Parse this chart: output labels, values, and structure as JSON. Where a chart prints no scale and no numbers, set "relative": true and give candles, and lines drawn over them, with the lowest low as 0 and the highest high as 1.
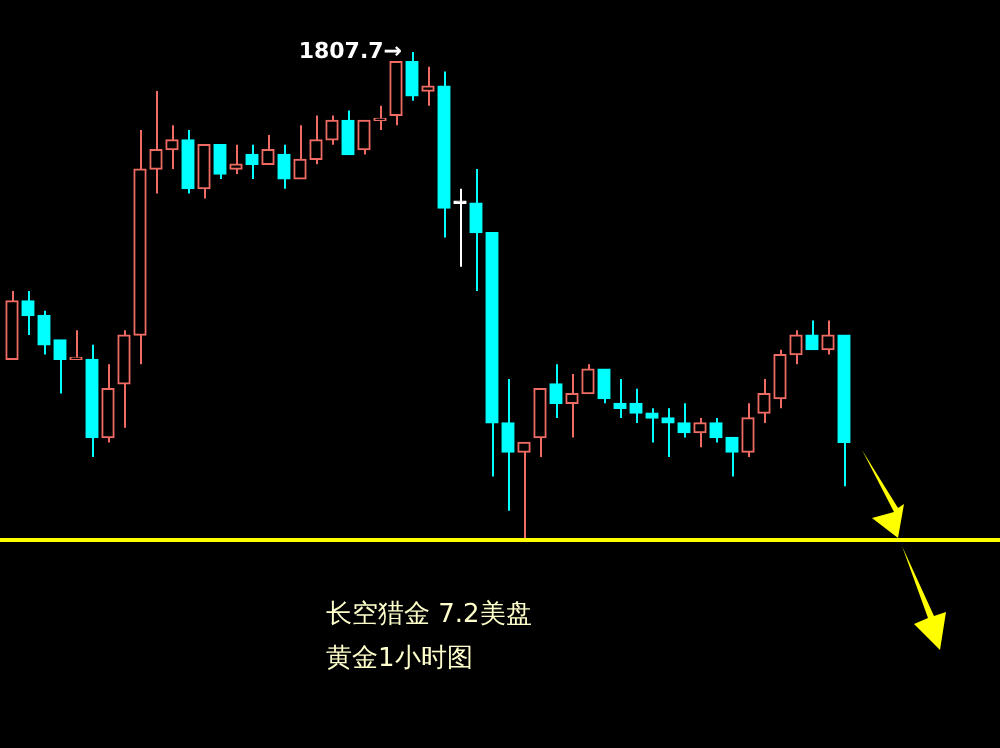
{
  "chart_data": {
    "type": "candlestick",
    "relative": true,
    "categories": [
      null,
      null,
      null,
      null,
      null,
      null,
      null,
      null,
      null,
      null,
      null,
      null,
      null,
      null,
      null,
      null,
      null,
      null,
      null,
      null,
      null,
      null,
      null,
      null,
      null,
      null,
      null,
      null,
      null,
      null,
      null,
      null,
      null,
      null,
      null,
      null,
      null,
      null,
      null,
      null,
      null,
      null,
      null,
      null,
      null,
      null,
      null,
      null,
      null,
      null,
      null,
      null,
      null
    ],
    "ohlc": [
      [
        0.37,
        0.51,
        0.37,
        0.49
      ],
      [
        0.49,
        0.51,
        0.42,
        0.46
      ],
      [
        0.46,
        0.47,
        0.38,
        0.4
      ],
      [
        0.41,
        0.41,
        0.3,
        0.37
      ],
      [
        0.37,
        0.43,
        0.37,
        0.37
      ],
      [
        0.37,
        0.4,
        0.17,
        0.21
      ],
      [
        0.21,
        0.36,
        0.2,
        0.31
      ],
      [
        0.32,
        0.43,
        0.23,
        0.42
      ],
      [
        0.42,
        0.84,
        0.36,
        0.76
      ],
      [
        0.76,
        0.92,
        0.71,
        0.8
      ],
      [
        0.8,
        0.85,
        0.76,
        0.82
      ],
      [
        0.82,
        0.84,
        0.71,
        0.72
      ],
      [
        0.72,
        0.81,
        0.7,
        0.81
      ],
      [
        0.81,
        0.81,
        0.74,
        0.75
      ],
      [
        0.76,
        0.81,
        0.75,
        0.77
      ],
      [
        0.79,
        0.81,
        0.74,
        0.77
      ],
      [
        0.77,
        0.83,
        0.77,
        0.8
      ],
      [
        0.79,
        0.81,
        0.72,
        0.74
      ],
      [
        0.74,
        0.85,
        0.74,
        0.78
      ],
      [
        0.78,
        0.87,
        0.77,
        0.82
      ],
      [
        0.82,
        0.87,
        0.81,
        0.86
      ],
      [
        0.86,
        0.88,
        0.79,
        0.79
      ],
      [
        0.8,
        0.86,
        0.79,
        0.86
      ],
      [
        0.86,
        0.89,
        0.84,
        0.86
      ],
      [
        0.87,
        0.98,
        0.85,
        0.98
      ],
      [
        0.98,
        1,
        0.9,
        0.91
      ],
      [
        0.92,
        0.97,
        0.89,
        0.93
      ],
      [
        0.93,
        0.96,
        0.62,
        0.68
      ],
      [
        0.69,
        0.72,
        0.56,
        0.69
      ],
      [
        0.69,
        0.76,
        0.51,
        0.63
      ],
      [
        0.63,
        0.63,
        0.13,
        0.24
      ],
      [
        0.24,
        0.33,
        0.06,
        0.18
      ],
      [
        0.18,
        0.2,
        0,
        0.2
      ],
      [
        0.21,
        0.31,
        0.17,
        0.31
      ],
      [
        0.32,
        0.36,
        0.25,
        0.28
      ],
      [
        0.28,
        0.34,
        0.21,
        0.3
      ],
      [
        0.3,
        0.36,
        0.3,
        0.35
      ],
      [
        0.35,
        0.35,
        0.28,
        0.29
      ],
      [
        0.28,
        0.33,
        0.25,
        0.27
      ],
      [
        0.28,
        0.31,
        0.24,
        0.26
      ],
      [
        0.26,
        0.27,
        0.2,
        0.25
      ],
      [
        0.25,
        0.27,
        0.17,
        0.24
      ],
      [
        0.24,
        0.28,
        0.21,
        0.22
      ],
      [
        0.22,
        0.25,
        0.19,
        0.24
      ],
      [
        0.24,
        0.25,
        0.2,
        0.21
      ],
      [
        0.21,
        0.21,
        0.13,
        0.18
      ],
      [
        0.18,
        0.28,
        0.17,
        0.25
      ],
      [
        0.26,
        0.33,
        0.24,
        0.3
      ],
      [
        0.29,
        0.39,
        0.27,
        0.38
      ],
      [
        0.38,
        0.43,
        0.36,
        0.42
      ],
      [
        0.42,
        0.45,
        0.39,
        0.39
      ],
      [
        0.39,
        0.45,
        0.38,
        0.42
      ],
      [
        0.42,
        0.42,
        0.11,
        0.2
      ]
    ],
    "colors": [
      "#ef6b63",
      "#00ffff",
      "#00ffff",
      "#00ffff",
      "#ef6b63",
      "#00ffff",
      "#ef6b63",
      "#ef6b63",
      "#ef6b63",
      "#ef6b63",
      "#ef6b63",
      "#00ffff",
      "#ef6b63",
      "#00ffff",
      "#ef6b63",
      "#00ffff",
      "#ef6b63",
      "#00ffff",
      "#ef6b63",
      "#ef6b63",
      "#ef6b63",
      "#00ffff",
      "#ef6b63",
      "#ef6b63",
      "#ef6b63",
      "#00ffff",
      "#ef6b63",
      "#00ffff",
      "#ffffff",
      "#00ffff",
      "#00ffff",
      "#00ffff",
      "#ef6b63",
      "#ef6b63",
      "#00ffff",
      "#ef6b63",
      "#ef6b63",
      "#00ffff",
      "#00ffff",
      "#00ffff",
      "#00ffff",
      "#00ffff",
      "#00ffff",
      "#ef6b63",
      "#00ffff",
      "#00ffff",
      "#ef6b63",
      "#ef6b63",
      "#ef6b63",
      "#ef6b63",
      "#00ffff",
      "#ef6b63",
      "#00ffff"
    ],
    "ref_lines": [
      {
        "axis": "y",
        "value": 0,
        "color": "#ffff00"
      }
    ],
    "annotations": [
      "1807.7→",
      "长空猎金 7.2美盘",
      "黄金1小时图"
    ]
  }
}
